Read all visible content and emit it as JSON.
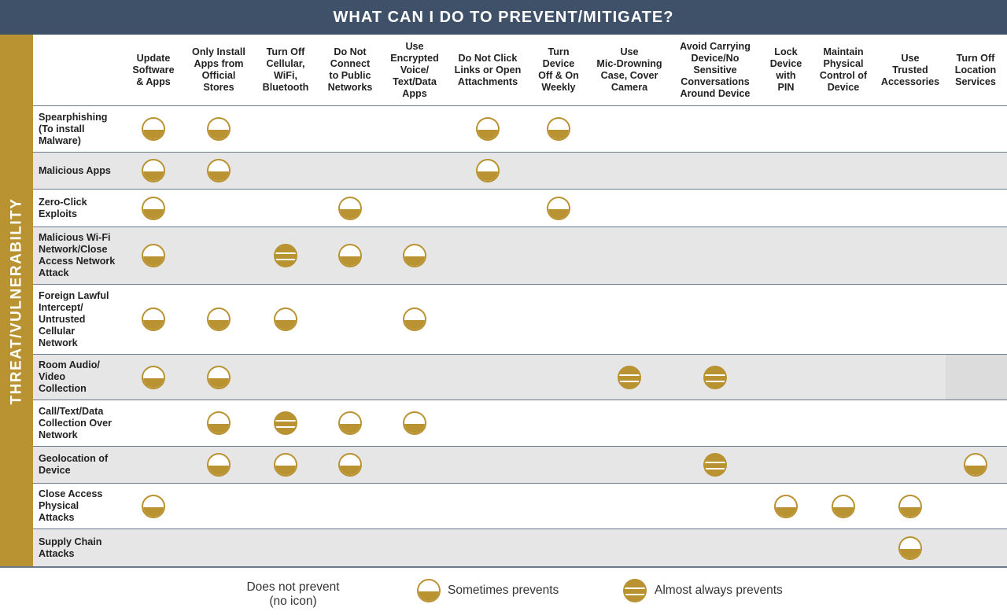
{
  "title": "WHAT CAN I DO TO PREVENT/MITIGATE?",
  "side_label": "THREAT/VULNERABILITY",
  "colors": {
    "header_bg": "#3f5168",
    "accent": "#b99231",
    "row_shade": "#e6e6e6",
    "rule": "#6a7a8c"
  },
  "columns": [
    "Update\nSoftware\n& Apps",
    "Only Install\nApps from\nOfficial\nStores",
    "Turn Off\nCellular,\nWiFi,\nBluetooth",
    "Do Not\nConnect\nto Public\nNetworks",
    "Use\nEncrypted\nVoice/\nText/Data\nApps",
    "Do Not Click\nLinks or Open\nAttachments",
    "Turn\nDevice\nOff & On\nWeekly",
    "Use\nMic-Drowning\nCase, Cover\nCamera",
    "Avoid Carrying\nDevice/No\nSensitive\nConversations\nAround Device",
    "Lock\nDevice\nwith\nPIN",
    "Maintain\nPhysical\nControl of\nDevice",
    "Use\nTrusted\nAccessories",
    "Turn Off\nLocation\nServices"
  ],
  "rows": [
    {
      "label": "Spearphishing\n(To install\nMalware)",
      "cells": [
        "sometimes",
        "sometimes",
        "",
        "",
        "",
        "sometimes",
        "sometimes",
        "",
        "",
        "",
        "",
        "",
        ""
      ]
    },
    {
      "label": "Malicious Apps",
      "cells": [
        "sometimes",
        "sometimes",
        "",
        "",
        "",
        "sometimes",
        "",
        "",
        "",
        "",
        "",
        "",
        ""
      ]
    },
    {
      "label": "Zero-Click\nExploits",
      "cells": [
        "sometimes",
        "",
        "",
        "sometimes",
        "",
        "",
        "sometimes",
        "",
        "",
        "",
        "",
        "",
        ""
      ]
    },
    {
      "label": "Malicious Wi-Fi\nNetwork/Close\nAccess Network\nAttack",
      "cells": [
        "sometimes",
        "",
        "almost",
        "sometimes",
        "sometimes",
        "",
        "",
        "",
        "",
        "",
        "",
        "",
        ""
      ]
    },
    {
      "label": "Foreign Lawful\nIntercept/\nUntrusted\nCellular\nNetwork",
      "cells": [
        "sometimes",
        "sometimes",
        "sometimes",
        "",
        "sometimes",
        "",
        "",
        "",
        "",
        "",
        "",
        "",
        ""
      ]
    },
    {
      "label": "Room Audio/\nVideo\nCollection",
      "cells": [
        "sometimes",
        "sometimes",
        "",
        "",
        "",
        "",
        "",
        "almost",
        "almost",
        "",
        "",
        "",
        ""
      ]
    },
    {
      "label": "Call/Text/Data\nCollection Over\nNetwork",
      "cells": [
        "",
        "sometimes",
        "almost",
        "sometimes",
        "sometimes",
        "",
        "",
        "",
        "",
        "",
        "",
        "",
        ""
      ]
    },
    {
      "label": "Geolocation of\nDevice",
      "cells": [
        "",
        "sometimes",
        "sometimes",
        "sometimes",
        "",
        "",
        "",
        "",
        "almost",
        "",
        "",
        "",
        "sometimes"
      ]
    },
    {
      "label": "Close Access\nPhysical\nAttacks",
      "cells": [
        "sometimes",
        "",
        "",
        "",
        "",
        "",
        "",
        "",
        "",
        "sometimes",
        "sometimes",
        "sometimes",
        ""
      ]
    },
    {
      "label": "Supply Chain\nAttacks",
      "cells": [
        "",
        "",
        "",
        "",
        "",
        "",
        "",
        "",
        "",
        "",
        "",
        "sometimes",
        ""
      ]
    }
  ],
  "legend": {
    "none": "Does not prevent\n(no icon)",
    "sometimes": "Sometimes prevents",
    "almost": "Almost always prevents"
  }
}
